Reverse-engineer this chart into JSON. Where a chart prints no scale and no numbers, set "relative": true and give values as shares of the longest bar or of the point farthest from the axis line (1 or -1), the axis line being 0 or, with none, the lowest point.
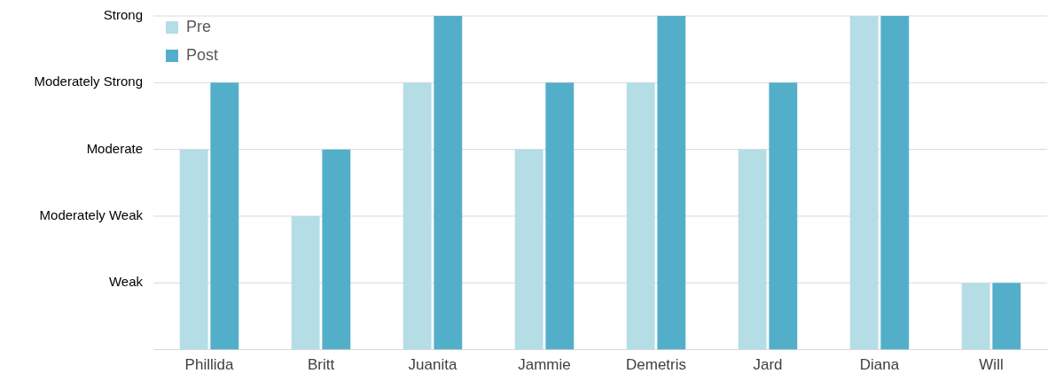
{
  "chart_data": {
    "type": "bar",
    "categories": [
      "Phillida",
      "Britt",
      "Juanita",
      "Jammie",
      "Demetris",
      "Jard",
      "Diana",
      "Will"
    ],
    "series": [
      {
        "name": "Pre",
        "color": "#b5dde6",
        "values": [
          0.6,
          0.4,
          0.8,
          0.6,
          0.8,
          0.6,
          1,
          0.2
        ]
      },
      {
        "name": "Post",
        "color": "#53afc9",
        "values": [
          0.8,
          0.6,
          1,
          0.8,
          1,
          0.8,
          1,
          0.2
        ]
      }
    ],
    "relative": true,
    "annotations": [
      "Weak",
      "Moderately Weak",
      "Moderate",
      "Moderately Strong",
      "Strong"
    ],
    "grid": "y",
    "legend": "top left"
  }
}
